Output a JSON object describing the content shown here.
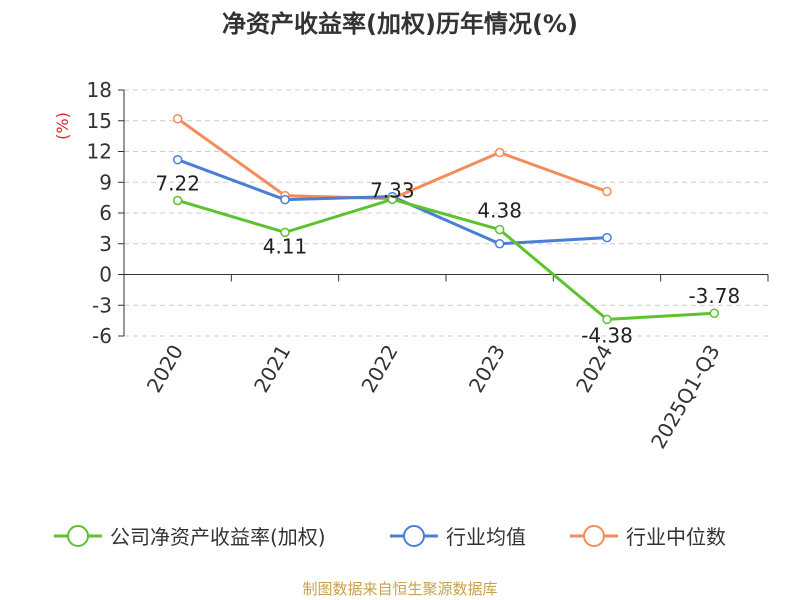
{
  "chart_data": {
    "type": "line",
    "title": "净资产收益率(加权)历年情况(%)",
    "ylabel": "(%)",
    "categories": [
      "2020",
      "2021",
      "2022",
      "2023",
      "2024",
      "2025Q1-Q3"
    ],
    "ylim": [
      -6,
      18
    ],
    "yticks": [
      18,
      15,
      12,
      9,
      6,
      3,
      0,
      -3,
      -6
    ],
    "grid": true,
    "legend_position": "bottom",
    "series": [
      {
        "name": "公司净资产收益率(加权)",
        "color": "#5cc22e",
        "values": [
          7.22,
          4.11,
          7.33,
          4.38,
          -4.38,
          -3.78
        ],
        "labels": [
          "7.22",
          "4.11",
          "7.33",
          "4.38",
          "-4.38",
          "-3.78"
        ]
      },
      {
        "name": "行业均值",
        "color": "#4a7fd4",
        "values": [
          11.2,
          7.3,
          7.6,
          3.0,
          3.6,
          null
        ]
      },
      {
        "name": "行业中位数",
        "color": "#f28c5a",
        "values": [
          15.2,
          7.7,
          7.4,
          11.9,
          8.1,
          null
        ]
      }
    ]
  },
  "source": "制图数据来自恒生聚源数据库"
}
